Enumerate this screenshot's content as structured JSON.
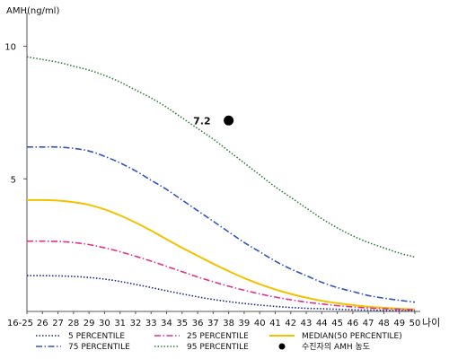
{
  "chart_data": {
    "type": "line",
    "title": "",
    "ylabel": "AMH(ng/ml)",
    "xlabel": "나이",
    "ylim": [
      0,
      11
    ],
    "yticks": [
      5,
      10
    ],
    "ytick_labels": [
      "5",
      "10"
    ],
    "x_tick_labels": [
      "16-25",
      "26",
      "27",
      "28",
      "29",
      "30",
      "31",
      "32",
      "33",
      "34",
      "35",
      "36",
      "37",
      "38",
      "39",
      "40",
      "41",
      "42",
      "43",
      "44",
      "45",
      "46",
      "47",
      "48",
      "49",
      "50"
    ],
    "x": [
      25,
      26,
      27,
      28,
      29,
      30,
      31,
      32,
      33,
      34,
      35,
      36,
      37,
      38,
      39,
      40,
      41,
      42,
      43,
      44,
      45,
      46,
      47,
      48,
      49,
      50
    ],
    "grid": false,
    "series": [
      {
        "name": "95 PERCENTILE",
        "color": "#2e7d3a",
        "style": "dotted",
        "values": [
          9.6,
          9.5,
          9.4,
          9.25,
          9.1,
          8.9,
          8.65,
          8.35,
          8.05,
          7.7,
          7.3,
          6.9,
          6.5,
          6.05,
          5.6,
          5.15,
          4.7,
          4.3,
          3.9,
          3.5,
          3.15,
          2.85,
          2.6,
          2.4,
          2.2,
          2.05
        ]
      },
      {
        "name": "75 PERCENTILE",
        "color": "#3355bb",
        "style": "dashdot",
        "values": [
          6.2,
          6.2,
          6.2,
          6.15,
          6.05,
          5.85,
          5.6,
          5.3,
          4.95,
          4.6,
          4.2,
          3.8,
          3.4,
          3.0,
          2.6,
          2.25,
          1.9,
          1.6,
          1.35,
          1.1,
          0.9,
          0.75,
          0.6,
          0.5,
          0.42,
          0.35
        ]
      },
      {
        "name": "MEDIAN(50 PERCENTILE)",
        "color": "#f2c200",
        "style": "solid",
        "values": [
          4.2,
          4.2,
          4.18,
          4.12,
          4.02,
          3.85,
          3.62,
          3.35,
          3.05,
          2.72,
          2.4,
          2.1,
          1.8,
          1.52,
          1.26,
          1.03,
          0.83,
          0.66,
          0.52,
          0.4,
          0.31,
          0.24,
          0.18,
          0.14,
          0.1,
          0.08
        ]
      },
      {
        "name": "25 PERCENTILE",
        "color": "#e0308a",
        "style": "dashdot",
        "values": [
          2.65,
          2.65,
          2.64,
          2.6,
          2.52,
          2.4,
          2.25,
          2.08,
          1.9,
          1.7,
          1.5,
          1.3,
          1.12,
          0.95,
          0.8,
          0.66,
          0.54,
          0.44,
          0.35,
          0.28,
          0.22,
          0.17,
          0.13,
          0.1,
          0.08,
          0.06
        ]
      },
      {
        "name": "5 PERCENTILE",
        "color": "#1a2a88",
        "style": "dotted",
        "values": [
          1.35,
          1.35,
          1.34,
          1.32,
          1.28,
          1.22,
          1.13,
          1.02,
          0.9,
          0.78,
          0.66,
          0.55,
          0.45,
          0.37,
          0.3,
          0.24,
          0.19,
          0.15,
          0.12,
          0.1,
          0.08,
          0.06,
          0.05,
          0.04,
          0.03,
          0.03
        ]
      }
    ],
    "points": [
      {
        "name": "수진자의 AMH 농도",
        "x": 38,
        "y": 7.2,
        "label": "7.2",
        "color": "#000000"
      }
    ],
    "legend": {
      "placement": "bottom",
      "items": [
        {
          "label": "5 PERCENTILE",
          "color": "#1a2a88",
          "style": "dotted"
        },
        {
          "label": "25 PERCENTILE",
          "color": "#e0308a",
          "style": "dashdot"
        },
        {
          "label": "MEDIAN(50 PERCENTILE)",
          "color": "#f2c200",
          "style": "solid"
        },
        {
          "label": "75 PERCENTILE",
          "color": "#3355bb",
          "style": "dashdot"
        },
        {
          "label": "95 PERCENTILE",
          "color": "#2e7d3a",
          "style": "dotted"
        },
        {
          "label": "수진자의 AMH 농도",
          "color": "#000000",
          "style": "marker"
        }
      ]
    }
  }
}
